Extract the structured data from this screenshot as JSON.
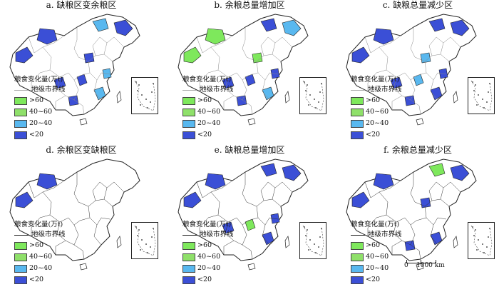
{
  "panels": [
    {
      "title": "a. 缺粮区变余粮区",
      "boundary_style": "light",
      "fills": [
        "#3b4fd6",
        "#3b4fd6",
        "#3b4fd6",
        "#59b8ef",
        "#3b4fd6",
        "#59b8ef",
        "#3b4fd6",
        "#59b8ef",
        "#3b4fd6",
        "#3b4fd6"
      ]
    },
    {
      "title": "b. 余粮总量增加区",
      "boundary_style": "light",
      "fills": [
        "#7ee85c",
        "#7ee85c",
        "#59b8ef",
        "#3b4fd6",
        "#3b4fd6",
        "#59b8ef",
        "#3b4fd6",
        "#3b4fd6",
        "#7ee85c",
        "#3b4fd6"
      ]
    },
    {
      "title": "c. 缺粮总量减少区",
      "boundary_style": "light",
      "fills": [
        "#3b4fd6",
        "#3b4fd6",
        "#3b4fd6",
        "#3b4fd6",
        "#59b8ef",
        "#3b4fd6",
        "#3b4fd6",
        "#3b4fd6",
        "#59b8ef",
        "#3b4fd6"
      ]
    },
    {
      "title": "d. 余粮区变缺粮区",
      "boundary_style": "dark",
      "fills": [
        "#3b4fd6",
        "#3b4fd6",
        "#ffffff",
        "#ffffff",
        "#ffffff",
        "#ffffff",
        "#ffffff",
        "#ffffff",
        "#ffffff",
        "#ffffff"
      ]
    },
    {
      "title": "e. 缺粮总量增加区",
      "boundary_style": "dark",
      "fills": [
        "#3b4fd6",
        "#3b4fd6",
        "#3b4fd6",
        "#3b4fd6",
        "#7ee85c",
        "#3b4fd6",
        "#ffffff",
        "#3b4fd6",
        "#ffffff",
        "#3b4fd6"
      ]
    },
    {
      "title": "f. 余粮总量减少区",
      "boundary_style": "dark",
      "fills": [
        "#3b4fd6",
        "#3b4fd6",
        "#3b4fd6",
        "#7ee85c",
        "#ffffff",
        "#3b4fd6",
        "#3b4fd6",
        "#ffffff",
        "#3b4fd6",
        "#ffffff"
      ]
    }
  ],
  "legend": {
    "title": "粮食变化量(万t)",
    "boundary_label": "地级市界线",
    "classes": [
      {
        "label": ">60",
        "color": "#7ee85c"
      },
      {
        "label": "40~60",
        "color": "#8fe06a"
      },
      {
        "label": "20~40",
        "color": "#59b8ef"
      },
      {
        "label": "<20",
        "color": "#3b4fd6"
      }
    ]
  },
  "scale": {
    "zero": "0",
    "distance": "1000 km"
  }
}
